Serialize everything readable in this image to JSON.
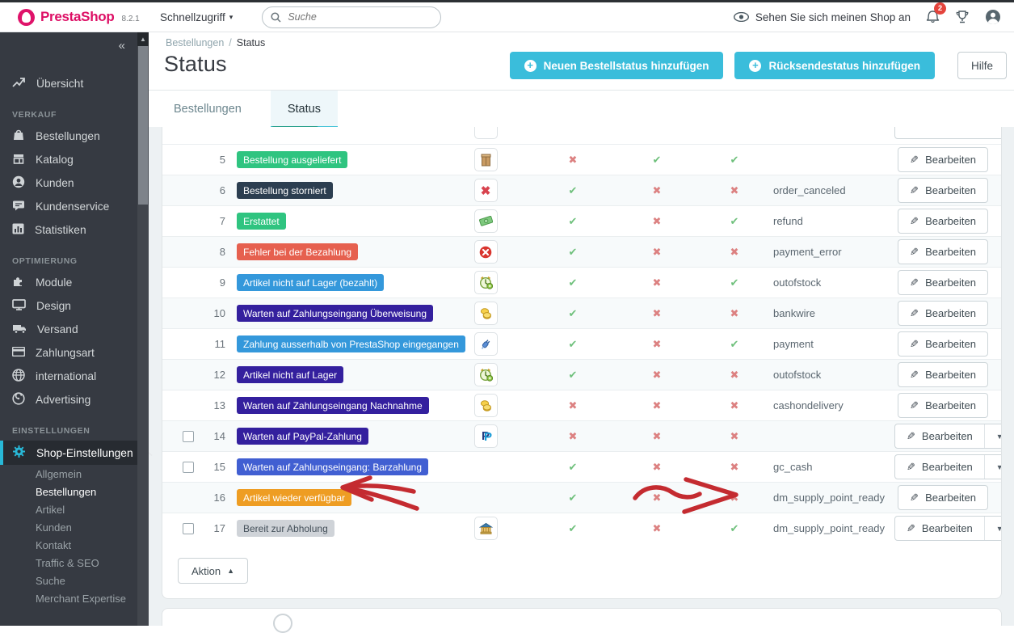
{
  "colors": {
    "primary": "#3abddb",
    "sidebar_bg": "#363a42",
    "logo_pink": "#dd0f65",
    "tab_underline": "#2aa18c",
    "check_green": "#6fc07c",
    "cross_red": "#dc8181",
    "annotation_red": "#c42b30"
  },
  "topbar": {
    "brand": "PrestaShop",
    "version": "8.2.1",
    "quick_access_label": "Schnellzugriff",
    "search_placeholder": "Suche",
    "view_shop_label": "Sehen Sie sich meinen Shop an",
    "notification_count": "2"
  },
  "sidebar": {
    "collapse_glyph": "«",
    "top_item": {
      "label": "Übersicht",
      "icon": "trend-chart-icon"
    },
    "sections": [
      {
        "label": "VERKAUF",
        "items": [
          {
            "label": "Bestellungen",
            "icon": "shopping-bag-icon"
          },
          {
            "label": "Katalog",
            "icon": "store-icon"
          },
          {
            "label": "Kunden",
            "icon": "person-icon"
          },
          {
            "label": "Kundenservice",
            "icon": "chat-icon"
          },
          {
            "label": "Statistiken",
            "icon": "bar-chart-icon"
          }
        ]
      },
      {
        "label": "OPTIMIERUNG",
        "items": [
          {
            "label": "Module",
            "icon": "puzzle-icon"
          },
          {
            "label": "Design",
            "icon": "monitor-icon"
          },
          {
            "label": "Versand",
            "icon": "truck-icon"
          },
          {
            "label": "Zahlungsart",
            "icon": "credit-card-icon"
          },
          {
            "label": "international",
            "icon": "globe-icon"
          },
          {
            "label": "Advertising",
            "icon": "megaphone-icon"
          }
        ]
      },
      {
        "label": "EINSTELLUNGEN",
        "items": [
          {
            "label": "Shop-Einstellungen",
            "icon": "gear-icon",
            "active": true,
            "expanded": true,
            "children": [
              {
                "label": "Allgemein"
              },
              {
                "label": "Bestellungen",
                "active": true
              },
              {
                "label": "Artikel"
              },
              {
                "label": "Kunden"
              },
              {
                "label": "Kontakt"
              },
              {
                "label": "Traffic & SEO"
              },
              {
                "label": "Suche"
              },
              {
                "label": "Merchant Expertise"
              }
            ]
          }
        ]
      }
    ]
  },
  "page": {
    "breadcrumb": {
      "parent": "Bestellungen",
      "separator": "/",
      "current": "Status"
    },
    "title": "Status",
    "buttons": {
      "add_order_status": "Neuen Bestellstatus hinzufügen",
      "add_return_status": "Rücksendestatus hinzufügen",
      "help": "Hilfe"
    },
    "tabs": [
      {
        "label": "Bestellungen",
        "active": false
      },
      {
        "label": "Status",
        "active": true
      }
    ]
  },
  "table": {
    "edit_label": "Bearbeiten",
    "action_label": "Aktion",
    "rows": [
      {
        "id": "5",
        "label": "Bestellung ausgeliefert",
        "badge_color": "#2fc480",
        "icon": "package",
        "checkbox": false,
        "flags": [
          "no",
          "yes",
          "yes"
        ],
        "template": "",
        "button": "plain"
      },
      {
        "id": "6",
        "label": "Bestellung storniert",
        "badge_color": "#2c3e50",
        "icon": "cancel-x",
        "checkbox": false,
        "flags": [
          "yes",
          "no",
          "no"
        ],
        "template": "order_canceled",
        "button": "plain"
      },
      {
        "id": "7",
        "label": "Erstattet",
        "badge_color": "#2fc480",
        "icon": "banknote",
        "checkbox": false,
        "flags": [
          "yes",
          "no",
          "yes"
        ],
        "template": "refund",
        "button": "plain"
      },
      {
        "id": "8",
        "label": "Fehler bei der Bezahlung",
        "badge_color": "#e6604f",
        "icon": "payment-error",
        "checkbox": false,
        "flags": [
          "yes",
          "no",
          "no"
        ],
        "template": "payment_error",
        "button": "plain"
      },
      {
        "id": "9",
        "label": "Artikel nicht auf Lager (bezahlt)",
        "badge_color": "#3498db",
        "icon": "clock",
        "checkbox": false,
        "flags": [
          "yes",
          "no",
          "yes"
        ],
        "template": "outofstock",
        "button": "plain"
      },
      {
        "id": "10",
        "label": "Warten auf Zahlungseingang Überweisung",
        "badge_color": "#34209e",
        "icon": "coins",
        "checkbox": false,
        "flags": [
          "yes",
          "no",
          "no"
        ],
        "template": "bankwire",
        "button": "plain"
      },
      {
        "id": "11",
        "label": "Zahlung ausserhalb von PrestaShop eingegangen",
        "badge_color": "#3498db",
        "icon": "plug",
        "checkbox": false,
        "flags": [
          "yes",
          "no",
          "yes"
        ],
        "template": "payment",
        "button": "plain"
      },
      {
        "id": "12",
        "label": "Artikel nicht auf Lager",
        "badge_color": "#34209e",
        "icon": "clock",
        "checkbox": false,
        "flags": [
          "yes",
          "no",
          "no"
        ],
        "template": "outofstock",
        "button": "plain"
      },
      {
        "id": "13",
        "label": "Warten auf Zahlungseingang Nachnahme",
        "badge_color": "#34209e",
        "icon": "coins",
        "checkbox": false,
        "flags": [
          "no",
          "no",
          "no"
        ],
        "template": "cashondelivery",
        "button": "plain"
      },
      {
        "id": "14",
        "label": "Warten auf PayPal-Zahlung",
        "badge_color": "#34209e",
        "icon": "paypal",
        "checkbox": true,
        "flags": [
          "no",
          "no",
          "no"
        ],
        "template": "",
        "button": "split"
      },
      {
        "id": "15",
        "label": "Warten auf Zahlungseingang: Barzahlung",
        "badge_color": "#415fd2",
        "icon": null,
        "checkbox": true,
        "flags": [
          "yes",
          "no",
          "no"
        ],
        "template": "gc_cash",
        "button": "split"
      },
      {
        "id": "16",
        "label": "Artikel wieder verfügbar",
        "badge_color": "#ee9d23",
        "icon": null,
        "checkbox": false,
        "flags": [
          "yes",
          "no",
          "no"
        ],
        "template": "dm_supply_point_ready",
        "button": "plain"
      },
      {
        "id": "17",
        "label": "Bereit zur Abholung",
        "badge_color": "#cfd3d8",
        "badge_text": "#44505a",
        "icon": "bank",
        "checkbox": true,
        "flags": [
          "yes",
          "no",
          "yes"
        ],
        "template": "dm_supply_point_ready",
        "button": "split"
      }
    ]
  },
  "annotations": {
    "arrow_left": "hand-drawn red arrow pointing at badge 'Artikel wieder verfügbar' (row 16)",
    "arrow_right": "hand-drawn red arrow / chevron scribbled over the crosses of row 16"
  }
}
